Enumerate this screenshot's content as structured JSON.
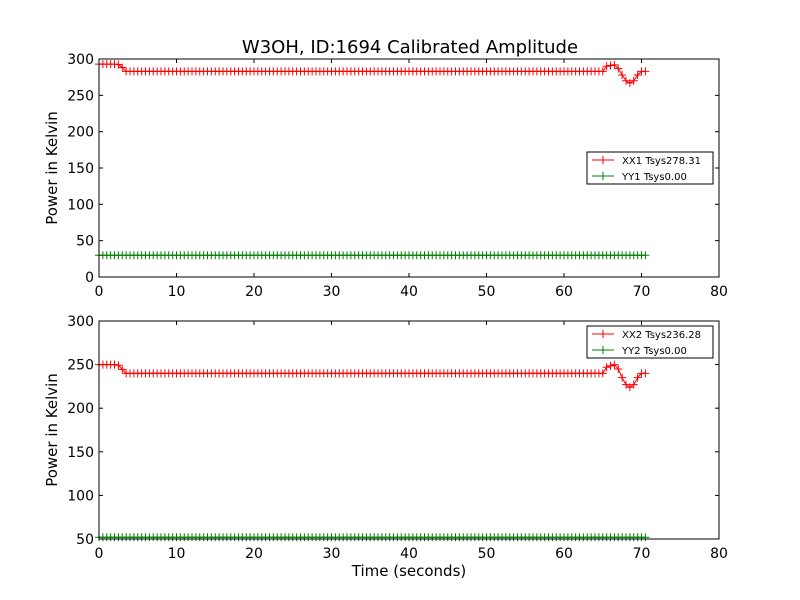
{
  "figure": {
    "title": "W3OH, ID:1694 Calibrated Amplitude",
    "colors": {
      "XX": "#ff0000",
      "YY": "#008000"
    }
  },
  "chart_data": [
    {
      "type": "line",
      "title": "W3OH, ID:1694 Calibrated Amplitude",
      "xlabel": "",
      "ylabel": "Power in Kelvin",
      "xlim": [
        0,
        80
      ],
      "ylim": [
        0,
        300
      ],
      "xticks": [
        0,
        10,
        20,
        30,
        40,
        50,
        60,
        70,
        80
      ],
      "yticks": [
        0,
        50,
        100,
        150,
        200,
        250,
        300
      ],
      "xtick_labels": [
        "0",
        "10",
        "20",
        "30",
        "40",
        "50",
        "60",
        "70",
        "80"
      ],
      "ytick_labels": [
        "0",
        "50",
        "100",
        "150",
        "200",
        "250",
        "300"
      ],
      "grid": false,
      "legend_placement": "center-right",
      "marker": "+",
      "series": [
        {
          "name": "XX1 Tsys278.31",
          "color": "#ff0000",
          "profile": [
            [
              0,
              293
            ],
            [
              2.4,
              293
            ],
            [
              2.9,
              290
            ],
            [
              3.3,
              283
            ],
            [
              65,
              283
            ],
            [
              65.5,
              290
            ],
            [
              66.5,
              292
            ],
            [
              67,
              287
            ],
            [
              67.5,
              278
            ],
            [
              68,
              270
            ],
            [
              68.5,
              267
            ],
            [
              69,
              270
            ],
            [
              69.5,
              278
            ],
            [
              70,
              283
            ],
            [
              70.5,
              283
            ]
          ]
        },
        {
          "name": "YY1 Tsys0.00",
          "color": "#008000",
          "profile": [
            [
              0,
              30
            ],
            [
              70.5,
              30
            ]
          ]
        }
      ]
    },
    {
      "type": "line",
      "title": "",
      "xlabel": "Time (seconds)",
      "ylabel": "Power in Kelvin",
      "xlim": [
        0,
        80
      ],
      "ylim": [
        50,
        300
      ],
      "xticks": [
        0,
        10,
        20,
        30,
        40,
        50,
        60,
        70,
        80
      ],
      "yticks": [
        50,
        100,
        150,
        200,
        250,
        300
      ],
      "xtick_labels": [
        "0",
        "10",
        "20",
        "30",
        "40",
        "50",
        "60",
        "70",
        "80"
      ],
      "ytick_labels": [
        "50",
        "100",
        "150",
        "200",
        "250",
        "300"
      ],
      "grid": false,
      "legend_placement": "upper-right",
      "marker": "+",
      "series": [
        {
          "name": "XX2 Tsys236.28",
          "color": "#ff0000",
          "profile": [
            [
              0,
              250
            ],
            [
              2.4,
              250
            ],
            [
              2.9,
              246
            ],
            [
              3.3,
              240
            ],
            [
              65,
              240
            ],
            [
              65.5,
              247
            ],
            [
              66.5,
              250
            ],
            [
              67,
              245
            ],
            [
              67.5,
              235
            ],
            [
              68,
              227
            ],
            [
              68.5,
              224
            ],
            [
              69,
              227
            ],
            [
              69.5,
              235
            ],
            [
              70,
              240
            ],
            [
              70.5,
              240
            ]
          ]
        },
        {
          "name": "YY2 Tsys0.00",
          "color": "#008000",
          "profile": [
            [
              0,
              52
            ],
            [
              70.5,
              52
            ]
          ]
        }
      ]
    }
  ]
}
